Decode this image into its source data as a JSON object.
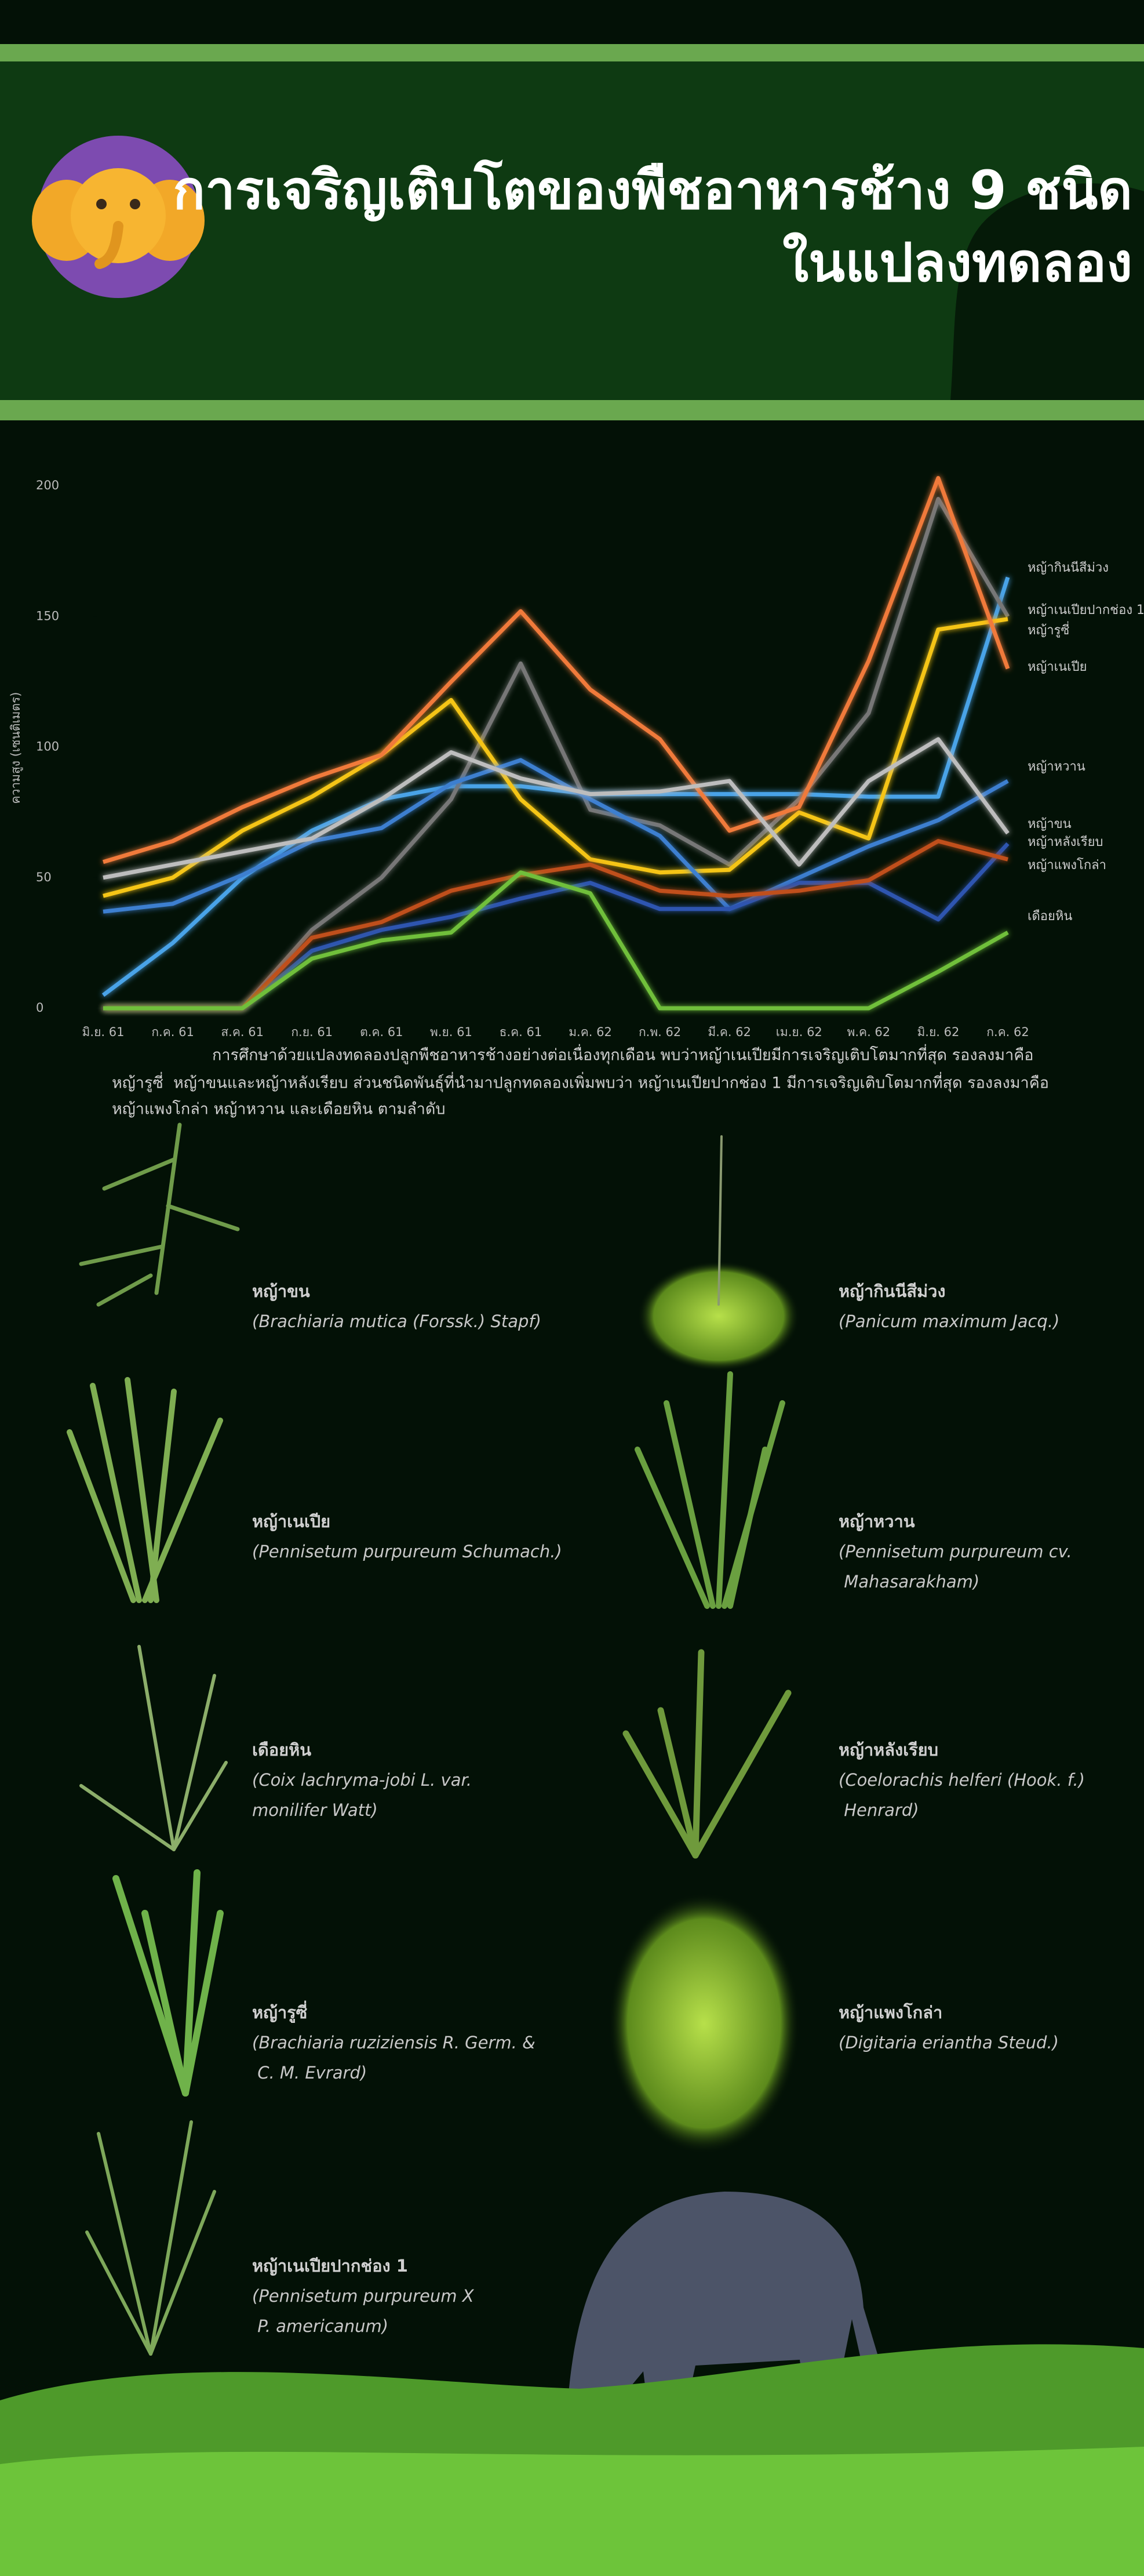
{
  "header": {
    "title_lines": [
      "การเจริญเติบโตของพืชอาหารช้าง 9 ชนิด",
      "ในแปลงทดลอง"
    ]
  },
  "chart_data": {
    "type": "line",
    "y_label": "ความสูง (เซนติเมตร)",
    "categories": [
      "มิ.ย. 61",
      "ก.ค. 61",
      "ส.ค. 61",
      "ก.ย. 61",
      "ต.ค. 61",
      "พ.ย. 61",
      "ธ.ค. 61",
      "ม.ค. 62",
      "ก.พ. 62",
      "มี.ค. 62",
      "เม.ย. 62",
      "พ.ค. 62",
      "มิ.ย. 62",
      "ก.ค. 62"
    ],
    "ylim": [
      0,
      210
    ],
    "yticks": [
      0,
      50,
      100,
      150,
      200
    ],
    "series": [
      {
        "name": "หญ้ากินนีสีม่วง",
        "color": "#4aa3e8",
        "values": [
          5,
          25,
          50,
          68,
          80,
          85,
          85,
          82,
          82,
          82,
          82,
          81,
          81,
          165
        ]
      },
      {
        "name": "หญ้าเนเปียปากช่อง 1",
        "color": "#777777",
        "values": [
          0,
          0,
          0,
          30,
          50,
          80,
          132,
          76,
          70,
          55,
          80,
          113,
          195,
          150
        ]
      },
      {
        "name": "หญ้ารูซี่",
        "color": "#f5c518",
        "values": [
          43,
          50,
          68,
          81,
          97,
          118,
          80,
          57,
          52,
          53,
          75,
          65,
          145,
          149
        ]
      },
      {
        "name": "หญ้าเนเปีย",
        "color": "#f07a3a",
        "values": [
          56,
          64,
          77,
          88,
          97,
          125,
          152,
          122,
          103,
          68,
          77,
          133,
          203,
          130
        ]
      },
      {
        "name": "หญ้าหวาน",
        "color": "#3d7fd0",
        "values": [
          37,
          40,
          51,
          64,
          69,
          86,
          95,
          80,
          66,
          38,
          50,
          62,
          72,
          87
        ]
      },
      {
        "name": "หญ้าขน",
        "color": "#bdbdbd",
        "values": [
          50,
          55,
          60,
          65,
          80,
          98,
          88,
          82,
          83,
          87,
          55,
          87,
          103,
          67
        ]
      },
      {
        "name": "หญ้าหลังเรียบ",
        "color": "#2f55b0",
        "values": [
          0,
          0,
          0,
          22,
          30,
          35,
          42,
          48,
          38,
          38,
          48,
          48,
          34,
          63
        ]
      },
      {
        "name": "หญ้าแพงโกล่า",
        "color": "#c0501a",
        "values": [
          0,
          0,
          0,
          27,
          33,
          45,
          51,
          55,
          45,
          43,
          45,
          49,
          64,
          57
        ]
      },
      {
        "name": "เดือยหิน",
        "color": "#6fbf3a",
        "values": [
          0,
          0,
          0,
          19,
          26,
          29,
          52,
          44,
          0,
          0,
          0,
          0,
          14,
          29
        ]
      }
    ]
  },
  "caption": [
    "การศึกษาด้วยแปลงทดลองปลูกพืชอาหารช้างอย่างต่อเนื่องทุกเดือน พบว่าหญ้าเนเปียมีการเจริญเติบโตมากที่สุด รองลงมาคือ",
    "หญ้ารูซี่  หญ้าขนและหญ้าหลังเรียบ ส่วนชนิดพันธุ์ที่นำมาปลูกทดลองเพิ่มพบว่า หญ้าเนเปียปากช่อง 1 มีการเจริญเติบโตมากที่สุด รองลงมาคือ",
    "หญ้าแพงโกล่า หญ้าหวาน และเดือยหิน ตามลำดับ"
  ],
  "plants": [
    {
      "name": "หญ้าขน",
      "scientific": [
        "(Brachiaria mutica (Forssk.) Stapf)"
      ]
    },
    {
      "name": "หญ้ากินนีสีม่วง",
      "scientific": [
        "(Panicum maximum Jacq.)"
      ]
    },
    {
      "name": "หญ้าเนเปีย",
      "scientific": [
        "(Pennisetum purpureum Schumach.)"
      ]
    },
    {
      "name": "หญ้าหวาน",
      "scientific": [
        "(Pennisetum purpureum cv.",
        " Mahasarakham)"
      ]
    },
    {
      "name": "เดือยหิน",
      "scientific": [
        "(Coix lachryma-jobi L. var.",
        "monilifer Watt)"
      ]
    },
    {
      "name": "หญ้าหลังเรียบ",
      "scientific": [
        "(Coelorachis helferi (Hook. f.)",
        " Henrard)"
      ]
    },
    {
      "name": "หญ้ารูซี่",
      "scientific": [
        "(Brachiaria ruziziensis R. Germ. &",
        " C. M. Evrard)"
      ]
    },
    {
      "name": "หญ้าแพงโกล่า",
      "scientific": [
        "(Digitaria eriantha Steud.)"
      ]
    },
    {
      "name": "หญ้าเนเปียปากช่อง 1",
      "scientific": [
        "(Pennisetum purpureum X",
        " P. americanum)"
      ]
    }
  ]
}
